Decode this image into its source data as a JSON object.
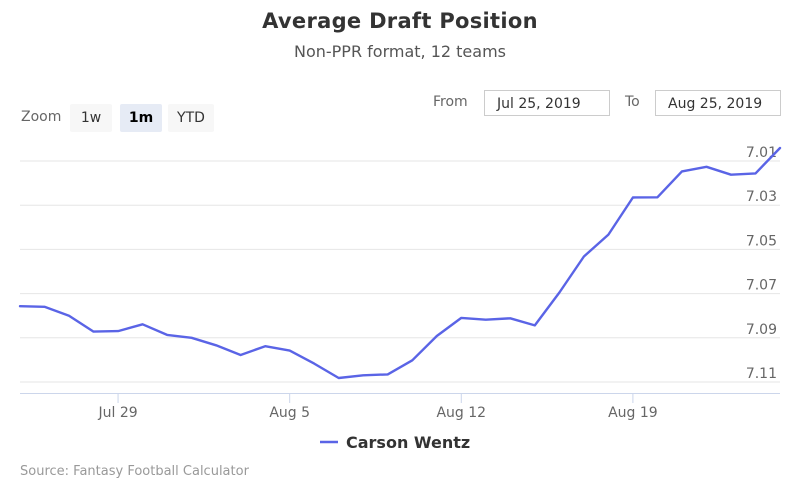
{
  "chart_data": {
    "type": "line",
    "title": "Average Draft Position",
    "subtitle": "Non-PPR format, 12 teams",
    "xlabel": "",
    "ylabel": "",
    "y_axis_reversed": true,
    "ylim": [
      7.115,
      7.005
    ],
    "ytick_labels": [
      "7.01",
      "7.03",
      "7.05",
      "7.07",
      "7.09",
      "7.11"
    ],
    "yticks": [
      7.01,
      7.03,
      7.05,
      7.07,
      7.09,
      7.11
    ],
    "xtick_labels": [
      "Jul 29",
      "Aug 5",
      "Aug 12",
      "Aug 19"
    ],
    "xticks": [
      "2019-07-29",
      "2019-08-05",
      "2019-08-12",
      "2019-08-19"
    ],
    "x_range": [
      "2019-07-25",
      "2019-08-25"
    ],
    "grid": true,
    "legend_position": "bottom-center",
    "series": [
      {
        "name": "Carson Wentz",
        "color": "#5a64e6",
        "x": [
          "2019-07-25",
          "2019-07-26",
          "2019-07-27",
          "2019-07-28",
          "2019-07-29",
          "2019-07-30",
          "2019-07-31",
          "2019-08-01",
          "2019-08-02",
          "2019-08-03",
          "2019-08-04",
          "2019-08-05",
          "2019-08-06",
          "2019-08-07",
          "2019-08-08",
          "2019-08-09",
          "2019-08-10",
          "2019-08-11",
          "2019-08-12",
          "2019-08-13",
          "2019-08-14",
          "2019-08-15",
          "2019-08-16",
          "2019-08-17",
          "2019-08-18",
          "2019-08-19",
          "2019-08-20",
          "2019-08-21",
          "2019-08-22",
          "2019-08-23",
          "2019-08-24",
          "2019-08-25"
        ],
        "values": [
          7.0757,
          7.076,
          7.08,
          7.0872,
          7.087,
          7.0839,
          7.0887,
          7.09,
          7.0934,
          7.0978,
          7.0938,
          7.0958,
          7.1017,
          7.1082,
          7.107,
          7.1066,
          7.1002,
          7.0892,
          7.081,
          7.0818,
          7.0812,
          7.0844,
          7.0695,
          7.0532,
          7.0433,
          7.0265,
          7.0264,
          7.0147,
          7.0126,
          7.0162,
          7.0156,
          7.0041
        ]
      }
    ]
  },
  "controls": {
    "zoom_label": "Zoom",
    "zoom_buttons": [
      "1w",
      "1m",
      "YTD"
    ],
    "zoom_selected": "1m",
    "from_label": "From",
    "from_value": "Jul 25, 2019",
    "to_label": "To",
    "to_value": "Aug 25, 2019"
  },
  "credits": "Source: Fantasy Football Calculator",
  "colors": {
    "line": "#5a64e6",
    "grid": "#e6e6e6",
    "axis": "#ccd6eb",
    "selected_button": "#e6ebf5",
    "button": "#f7f7f7"
  }
}
